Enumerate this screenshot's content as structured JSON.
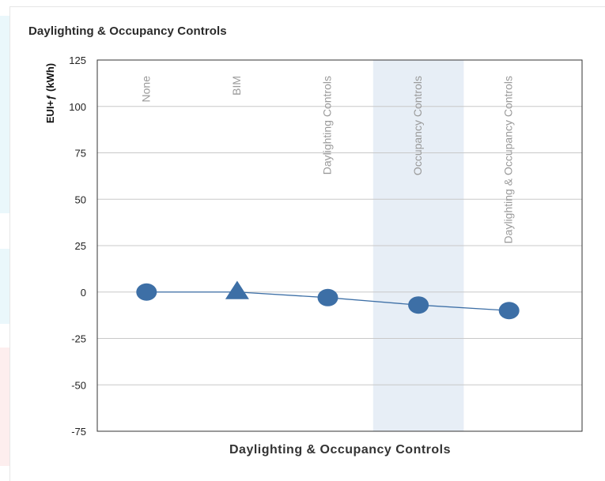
{
  "panel": {
    "title": "Daylighting & Occupancy Controls"
  },
  "colors": {
    "series": "#3d6fa6",
    "highlight_band": "#e7eef6",
    "grid": "#c8c8c8",
    "category_label": "#9a9a9a"
  },
  "chart_data": {
    "type": "line",
    "title": "Daylighting & Occupancy Controls",
    "xlabel": "Daylighting & Occupancy Controls",
    "ylabel": "EUI+ƒ (kWh)",
    "ylim": [
      -75,
      125
    ],
    "yticks": [
      125,
      100,
      75,
      50,
      25,
      0,
      -25,
      -50,
      -75
    ],
    "grid": true,
    "categories": [
      "None",
      "BIM",
      "Daylighting Controls",
      "Occupancy Controls",
      "Daylighting & Occupancy Controls"
    ],
    "highlighted_category": "Occupancy Controls",
    "series": [
      {
        "values": [
          0,
          0,
          -3,
          -7,
          -10
        ],
        "markers": [
          "circle",
          "triangle",
          "circle",
          "circle",
          "circle"
        ]
      }
    ]
  }
}
